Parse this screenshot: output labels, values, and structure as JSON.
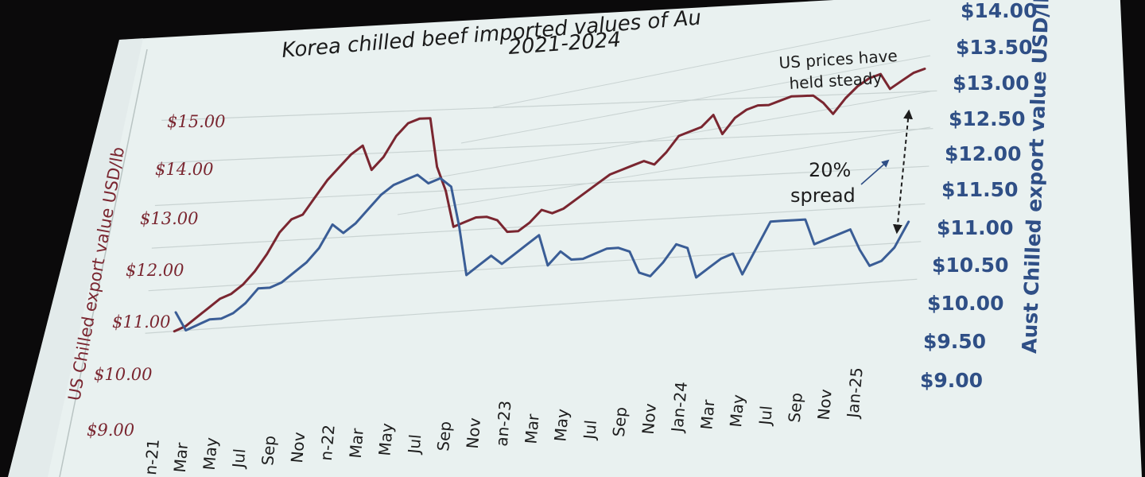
{
  "colors": {
    "background": "#0b0a0b",
    "screen": "#e9f1f0",
    "gridline": "#c9d3d2",
    "us_series": "#7a2630",
    "aust_series": "#3a5d96"
  },
  "chart_data": {
    "type": "line",
    "title_line1": "Korea chilled beef imported values of Au",
    "title_line2": "2021-2024",
    "x_labels": [
      "n-21",
      "Mar",
      "May",
      "Jul",
      "Sep",
      "Nov",
      "n-22",
      "Mar",
      "May",
      "Jul",
      "Sep",
      "Nov",
      "an-23",
      "Mar",
      "May",
      "Jul",
      "Sep",
      "Nov",
      "Jan-24",
      "Mar",
      "May",
      "Jul",
      "Sep",
      "Nov",
      "Jan-25"
    ],
    "y_left": {
      "label": "US Chilled export value USD/lb",
      "ticks": [
        "$15.00",
        "$14.00",
        "$13.00",
        "$12.00",
        "$11.00",
        "$10.00",
        "$9.00"
      ],
      "range": [
        9,
        15
      ]
    },
    "y_right": {
      "label": "Aust Chilled export value USD/lb",
      "ticks": [
        "$14.00",
        "$13.50",
        "$13.00",
        "$12.50",
        "$12.00",
        "$11.50",
        "$11.00",
        "$10.50",
        "$10.00",
        "$9.50",
        "$9.00"
      ],
      "range": [
        9,
        14
      ]
    },
    "series": [
      {
        "name": "US",
        "axis": "left",
        "values": [
          10.0,
          10.1,
          10.3,
          10.5,
          10.7,
          10.8,
          11.0,
          11.3,
          11.7,
          12.2,
          12.5,
          12.6,
          13.0,
          13.4,
          13.7,
          14.0,
          14.2,
          13.6,
          13.9,
          14.4,
          14.7,
          14.8,
          14.8,
          13.6,
          13.0,
          12.1,
          12.2,
          12.3,
          12.3,
          12.2,
          11.9,
          11.9,
          12.1,
          12.4,
          12.3,
          12.4,
          12.6,
          12.8,
          13.0,
          13.2,
          13.3,
          13.4,
          13.5,
          13.4,
          13.7,
          14.1,
          14.2,
          14.3,
          14.6,
          14.1,
          14.5,
          14.7,
          14.8,
          14.8,
          14.9,
          15.0,
          15.0,
          15.0,
          14.8,
          14.5,
          14.9,
          15.2,
          15.4,
          15.5,
          15.1,
          15.3,
          15.5,
          15.6
        ]
      },
      {
        "name": "Aust",
        "axis": "right",
        "values": [
          10.2,
          9.8,
          9.9,
          10.0,
          10.0,
          10.1,
          10.3,
          10.6,
          10.6,
          10.7,
          10.9,
          11.1,
          11.4,
          11.9,
          11.7,
          11.9,
          12.2,
          12.5,
          12.7,
          12.8,
          12.9,
          12.7,
          12.8,
          12.6,
          11.7,
          10.6,
          10.8,
          11.0,
          10.8,
          11.0,
          11.2,
          11.4,
          10.7,
          11.0,
          10.8,
          10.8,
          10.9,
          11.0,
          11.0,
          10.9,
          10.4,
          10.3,
          10.6,
          11.0,
          10.9,
          10.2,
          10.4,
          10.6,
          10.7,
          10.2,
          10.8,
          11.4,
          11.4,
          11.4,
          11.4,
          10.8,
          10.9,
          11.0,
          11.1,
          10.6,
          10.2,
          10.3,
          10.6,
          11.2
        ]
      }
    ],
    "annotations": {
      "note_line1": "US prices have",
      "note_line2": "held steady",
      "spread_pct": "20%",
      "spread_word": "spread"
    },
    "grid": true
  }
}
